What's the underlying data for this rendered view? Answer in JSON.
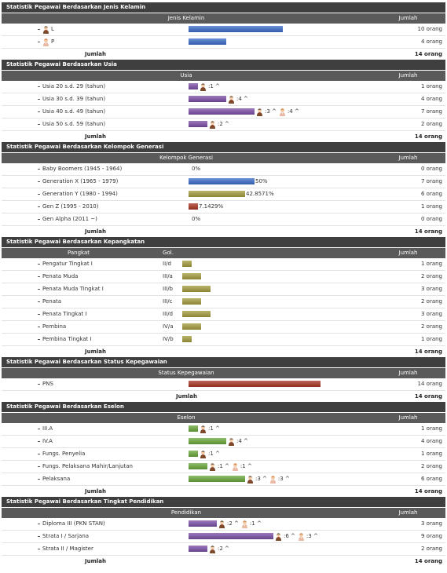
{
  "sections": [
    {
      "title": "Statistik Pegawai Berdasarkan Jenis Kelamin",
      "columns": [
        "Jenis Kelamin",
        "Jumlah"
      ],
      "bar_color": "#3a6cc8",
      "rows": [
        {
          "label": "L",
          "icon": "male",
          "count": 10,
          "count_label": "10 orang"
        },
        {
          "label": "P",
          "icon": "female",
          "count": 4,
          "count_label": "4 orang"
        }
      ],
      "total_label": "Jumlah",
      "total": "14 orang"
    },
    {
      "title": "Statistik Pegawai Berdasarkan Usia",
      "columns": [
        "Usia",
        "Jumlah"
      ],
      "bar_color": "#7a4ea6",
      "rows": [
        {
          "label": "Usia 20 s.d. 29 (tahun)",
          "count": 1,
          "count_label": "1 orang",
          "badges": [
            {
              "icon": "male",
              "text": ":1 ^"
            }
          ]
        },
        {
          "label": "Usia 30 s.d. 39 (tahun)",
          "count": 4,
          "count_label": "4 orang",
          "badges": [
            {
              "icon": "male",
              "text": ":4 ^"
            }
          ]
        },
        {
          "label": "Usia 40 s.d. 49 (tahun)",
          "count": 7,
          "count_label": "7 orang",
          "badges": [
            {
              "icon": "male",
              "text": ":3 ^"
            },
            {
              "icon": "female",
              "text": ":4 ^"
            }
          ]
        },
        {
          "label": "Usia 50 s.d. 59 (tahun)",
          "count": 2,
          "count_label": "2 orang",
          "badges": [
            {
              "icon": "male",
              "text": ":2 ^"
            }
          ]
        }
      ],
      "total_label": "Jumlah",
      "total": "14 orang"
    },
    {
      "title": "Statistik Pegawai Berdasarkan Kelompok Generasi",
      "columns": [
        "Kelompok Generasi",
        "Jumlah"
      ],
      "rows": [
        {
          "label": "Baby Boomers (1945 - 1964)",
          "count": 0,
          "percent_label": "0%",
          "count_label": "0 orang",
          "bar_color": "#3a6cc8"
        },
        {
          "label": "Generation X (1965 - 1979)",
          "count": 7,
          "percent_label": "50%",
          "count_label": "7 orang",
          "bar_color": "#3a6cc8"
        },
        {
          "label": "Generation Y (1980 - 1994)",
          "count": 6,
          "percent_label": "42.8571%",
          "count_label": "6 orang",
          "bar_color": "#a39b3c"
        },
        {
          "label": "Gen Z (1995 - 2010)",
          "count": 1,
          "percent_label": "7.1429%",
          "count_label": "1 orang",
          "bar_color": "#a83422"
        },
        {
          "label": "Gen Alpha (2011 ~)",
          "count": 0,
          "percent_label": "0%",
          "count_label": "0 orang",
          "bar_color": "#3a6cc8"
        }
      ],
      "total_label": "Jumlah",
      "total": "14 orang"
    },
    {
      "title": "Statistik Pegawai Berdasarkan Kepangkatan",
      "columns": [
        "Pangkat",
        "Gol.",
        "Jumlah"
      ],
      "bar_color": "#a39b3c",
      "rows": [
        {
          "label": "Pengatur Tingkat I",
          "gol": "II/d",
          "count": 1,
          "count_label": "1 orang"
        },
        {
          "label": "Penata Muda",
          "gol": "III/a",
          "count": 2,
          "count_label": "2 orang"
        },
        {
          "label": "Penata Muda Tingkat I",
          "gol": "III/b",
          "count": 3,
          "count_label": "3 orang"
        },
        {
          "label": "Penata",
          "gol": "III/c",
          "count": 2,
          "count_label": "2 orang"
        },
        {
          "label": "Penata Tingkat I",
          "gol": "III/d",
          "count": 3,
          "count_label": "3 orang"
        },
        {
          "label": "Pembina",
          "gol": "IV/a",
          "count": 2,
          "count_label": "2 orang"
        },
        {
          "label": "Pembina Tingkat I",
          "gol": "IV/b",
          "count": 1,
          "count_label": "1 orang"
        }
      ],
      "total_label": "Jumlah",
      "total": "14 orang"
    },
    {
      "title": "Statistik Pegawai Berdasarkan Status Kepegawaian",
      "columns": [
        "Status Kepegawaian",
        "Jumlah"
      ],
      "bar_color": "#a83422",
      "rows": [
        {
          "label": "PNS",
          "count": 14,
          "count_label": "14 orang"
        }
      ],
      "total_label": "Jumlah",
      "total": "14 orang"
    },
    {
      "title": "Statistik Pegawai Berdasarkan Eselon",
      "columns": [
        "Eselon",
        "Jumlah"
      ],
      "bar_color": "#6aa63a",
      "rows": [
        {
          "label": "III.A",
          "count": 1,
          "count_label": "1 orang",
          "badges": [
            {
              "icon": "male",
              "text": ":1 ^"
            }
          ]
        },
        {
          "label": "IV.A",
          "count": 4,
          "count_label": "4 orang",
          "badges": [
            {
              "icon": "male",
              "text": ":4 ^"
            }
          ]
        },
        {
          "label": "Fungs. Penyelia",
          "count": 1,
          "count_label": "1 orang",
          "badges": [
            {
              "icon": "male",
              "text": ":1 ^"
            }
          ]
        },
        {
          "label": "Fungs. Pelaksana Mahir/Lanjutan",
          "count": 2,
          "count_label": "2 orang",
          "badges": [
            {
              "icon": "male",
              "text": ":1 ^"
            },
            {
              "icon": "female",
              "text": ":1 ^"
            }
          ]
        },
        {
          "label": "Pelaksana",
          "count": 6,
          "count_label": "6 orang",
          "badges": [
            {
              "icon": "male",
              "text": ":3 ^"
            },
            {
              "icon": "female",
              "text": ":3 ^"
            }
          ]
        }
      ],
      "total_label": "Jumlah",
      "total": "14 orang"
    },
    {
      "title": "Statistik Pegawai Berdasarkan Tingkat Pendidikan",
      "columns": [
        "Pendidikan",
        "Jumlah"
      ],
      "bar_color": "#7a4ea6",
      "rows": [
        {
          "label": "Diploma III (PKN STAN)",
          "count": 3,
          "count_label": "3 orang",
          "badges": [
            {
              "icon": "male",
              "text": ":2 ^"
            },
            {
              "icon": "female",
              "text": ":1 ^"
            }
          ]
        },
        {
          "label": "Strata I / Sarjana",
          "count": 9,
          "count_label": "9 orang",
          "badges": [
            {
              "icon": "male",
              "text": ":6 ^"
            },
            {
              "icon": "female",
              "text": ":3 ^"
            }
          ]
        },
        {
          "label": "Strata II / Magister",
          "count": 2,
          "count_label": "2 orang",
          "badges": [
            {
              "icon": "male",
              "text": ":2 ^"
            }
          ]
        }
      ],
      "total_label": "Jumlah",
      "total": "14 orang"
    }
  ]
}
